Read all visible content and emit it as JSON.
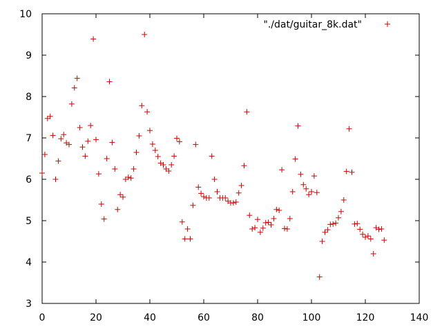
{
  "chart_data": {
    "type": "scatter",
    "title": "",
    "xlabel": "",
    "ylabel": "",
    "xlim": [
      0,
      140
    ],
    "ylim": [
      3,
      10
    ],
    "xticks": [
      0,
      20,
      40,
      60,
      80,
      100,
      120,
      140
    ],
    "yticks": [
      3,
      4,
      5,
      6,
      7,
      8,
      9,
      10
    ],
    "grid": false,
    "legend_position": "top-right",
    "marker": "plus",
    "series": [
      {
        "name": "\"./dat/guitar_8k.dat\"",
        "color": "#cc0000",
        "x": [
          0,
          1,
          2,
          3,
          4,
          5,
          6,
          7,
          8,
          9,
          10,
          11,
          12,
          13,
          14,
          15,
          16,
          17,
          18,
          19,
          20,
          21,
          22,
          23,
          24,
          25,
          26,
          27,
          28,
          29,
          30,
          31,
          32,
          33,
          34,
          35,
          36,
          37,
          38,
          39,
          40,
          41,
          42,
          43,
          44,
          45,
          46,
          47,
          48,
          49,
          50,
          51,
          52,
          53,
          54,
          55,
          56,
          57,
          58,
          59,
          60,
          61,
          62,
          63,
          64,
          65,
          66,
          67,
          68,
          69,
          70,
          71,
          72,
          73,
          74,
          75,
          76,
          77,
          78,
          79,
          80,
          81,
          82,
          83,
          84,
          85,
          86,
          87,
          88,
          89,
          90,
          91,
          92,
          93,
          94,
          95,
          96,
          97,
          98,
          99,
          100,
          101,
          102,
          103,
          104,
          105,
          106,
          107,
          108,
          109,
          110,
          111,
          112,
          113,
          114,
          115,
          116,
          117,
          118,
          119,
          120,
          121,
          122,
          123,
          124,
          125,
          126,
          127
        ],
        "y": [
          6.15,
          6.6,
          7.47,
          7.52,
          7.06,
          6.0,
          6.44,
          6.98,
          7.08,
          6.88,
          6.84,
          7.82,
          8.21,
          8.44,
          7.25,
          6.78,
          6.56,
          6.92,
          7.3,
          9.39,
          6.96,
          6.13,
          5.4,
          5.04,
          6.5,
          8.36,
          6.89,
          6.25,
          5.27,
          5.63,
          5.57,
          6.0,
          6.05,
          6.03,
          6.25,
          6.65,
          7.05,
          7.78,
          9.5,
          7.63,
          7.18,
          6.85,
          6.7,
          6.55,
          6.39,
          6.35,
          6.25,
          6.2,
          6.35,
          6.56,
          6.99,
          6.91,
          4.97,
          4.56,
          4.8,
          4.56,
          5.37,
          6.84,
          5.81,
          5.66,
          5.58,
          5.55,
          5.55,
          6.56,
          6.0,
          5.7,
          5.55,
          5.55,
          5.55,
          5.47,
          5.43,
          5.43,
          5.45,
          5.67,
          5.85,
          6.33,
          7.63,
          5.13,
          4.8,
          4.83,
          5.03,
          4.72,
          4.82,
          4.95,
          4.96,
          4.9,
          5.05,
          5.27,
          5.25,
          6.23,
          4.81,
          4.8,
          5.05,
          5.7,
          6.49,
          7.29,
          6.12,
          5.87,
          5.77,
          5.63,
          5.7,
          6.08,
          5.68,
          3.64,
          4.5,
          4.72,
          4.78,
          4.91,
          4.92,
          4.94,
          5.07,
          5.22,
          5.5,
          6.19,
          7.22,
          6.17,
          4.92,
          4.93,
          4.79,
          4.67,
          4.6,
          4.63,
          4.56,
          4.2,
          4.83,
          4.79,
          4.8,
          4.53
        ]
      }
    ]
  }
}
